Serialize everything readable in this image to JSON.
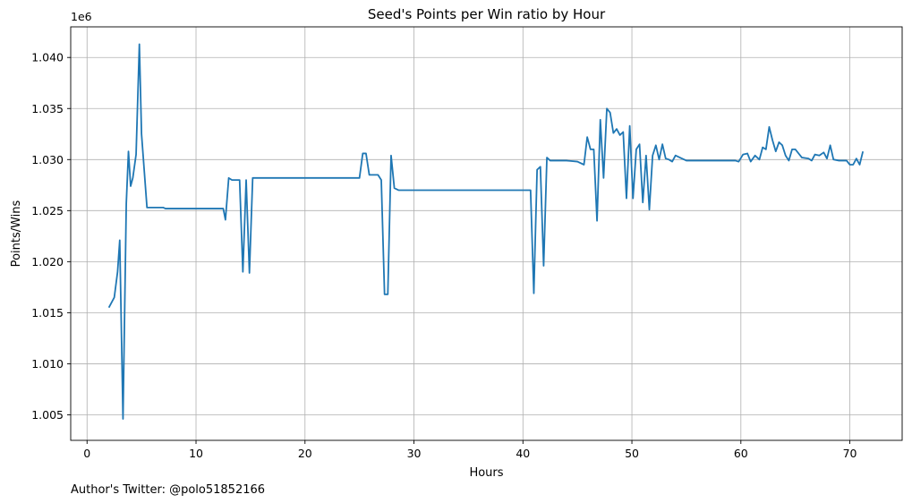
{
  "chart_data": {
    "type": "line",
    "title": "Seed's Points per Win ratio by Hour",
    "xlabel": "Hours",
    "ylabel": "Points/Wins",
    "offset_text": "1e6",
    "footer": "Author's Twitter: @polo51852166",
    "xlim": [
      -1.5,
      74.8
    ],
    "ylim": [
      1002500,
      1043000
    ],
    "grid": true,
    "line_color": "#1f77b4",
    "x_ticks": [
      0,
      10,
      20,
      30,
      40,
      50,
      60,
      70
    ],
    "x_tick_labels": [
      "0",
      "10",
      "20",
      "30",
      "40",
      "50",
      "60",
      "70"
    ],
    "y_ticks": [
      1005000,
      1010000,
      1015000,
      1020000,
      1025000,
      1030000,
      1035000,
      1040000
    ],
    "y_tick_labels": [
      "1.005",
      "1.010",
      "1.015",
      "1.020",
      "1.025",
      "1.030",
      "1.035",
      "1.040"
    ],
    "series": [
      {
        "x": [
          2.0,
          2.5,
          2.8,
          3.0,
          3.3,
          3.6,
          3.8,
          4.0,
          4.2,
          4.5,
          4.8,
          5.0,
          5.5,
          6.0,
          7.0,
          7.2,
          12.5,
          12.7,
          13.0,
          13.3,
          14.0,
          14.3,
          14.6,
          14.9,
          15.2,
          25.0,
          25.3,
          25.6,
          25.9,
          26.2,
          26.7,
          27.0,
          27.3,
          27.6,
          27.9,
          28.2,
          28.6,
          40.7,
          41.0,
          41.3,
          41.6,
          41.9,
          42.2,
          42.5,
          43.0,
          44.0,
          45.0,
          45.6,
          45.9,
          46.2,
          46.5,
          46.8,
          47.1,
          47.4,
          47.7,
          48.0,
          48.3,
          48.6,
          48.9,
          49.2,
          49.5,
          49.8,
          50.1,
          50.4,
          50.7,
          51.0,
          51.3,
          51.6,
          51.9,
          52.2,
          52.5,
          52.8,
          53.1,
          53.4,
          53.7,
          54.0,
          55.0,
          57.0,
          59.5,
          59.8,
          60.2,
          60.6,
          60.9,
          61.3,
          61.7,
          62.0,
          62.3,
          62.6,
          62.9,
          63.2,
          63.5,
          63.8,
          64.1,
          64.4,
          64.7,
          65.0,
          65.6,
          66.2,
          66.5,
          66.8,
          67.2,
          67.6,
          67.9,
          68.2,
          68.5,
          69.0,
          69.4,
          69.7,
          70.0,
          70.3,
          70.6,
          70.9,
          71.2
        ],
        "y": [
          1015500,
          1016500,
          1019000,
          1022100,
          1004600,
          1025700,
          1030800,
          1027400,
          1028200,
          1030500,
          1041300,
          1032500,
          1025300,
          1025300,
          1025300,
          1025200,
          1025200,
          1024100,
          1028200,
          1028000,
          1028000,
          1019000,
          1028000,
          1018900,
          1028200,
          1028200,
          1030600,
          1030600,
          1028500,
          1028500,
          1028500,
          1028000,
          1016800,
          1016800,
          1030400,
          1027200,
          1027000,
          1027000,
          1016900,
          1029000,
          1029300,
          1019600,
          1030200,
          1029900,
          1029900,
          1029900,
          1029800,
          1029500,
          1032200,
          1031000,
          1031000,
          1024000,
          1033900,
          1028200,
          1035000,
          1034600,
          1032600,
          1033000,
          1032400,
          1032700,
          1026200,
          1033300,
          1026200,
          1031000,
          1031500,
          1025800,
          1030400,
          1025100,
          1030400,
          1031400,
          1030000,
          1031500,
          1030100,
          1030000,
          1029800,
          1030400,
          1029900,
          1029900,
          1029900,
          1029800,
          1030500,
          1030600,
          1029800,
          1030400,
          1030000,
          1031200,
          1031000,
          1033200,
          1031900,
          1030800,
          1031700,
          1031400,
          1030400,
          1029900,
          1031000,
          1031000,
          1030200,
          1030100,
          1029900,
          1030500,
          1030400,
          1030700,
          1030100,
          1031400,
          1030000,
          1029900,
          1029900,
          1029900,
          1029500,
          1029500,
          1030100,
          1029500,
          1030800
        ]
      }
    ]
  }
}
